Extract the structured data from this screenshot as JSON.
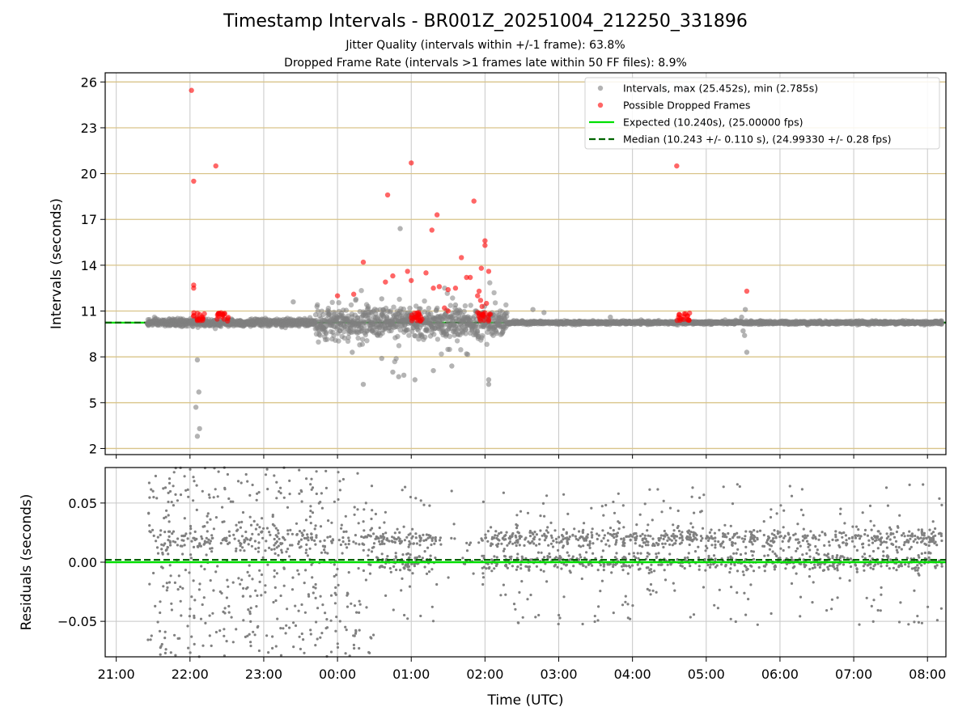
{
  "header": {
    "title": "Timestamp Intervals - BR001Z_20251004_212250_331896",
    "subtitle_1": "Jitter Quality (intervals within +/-1 frame): 63.8%",
    "subtitle_2": "Dropped Frame Rate (intervals >1 frames late within 50 FF files): 8.9%"
  },
  "colors": {
    "intervals": "#808080",
    "dropped": "#ff0000",
    "expected": "#00e000",
    "median": "#006400",
    "hgrid_top": "#d9c48a",
    "grid": "#c8c8c8"
  },
  "chart_data": [
    {
      "type": "scatter",
      "title": "Timestamp Intervals - BR001Z_20251004_212250_331896",
      "xlabel": "",
      "ylabel": "Intervals (seconds)",
      "x_unit": "hours since 21:00 UTC",
      "xlim": [
        -0.15,
        11.25
      ],
      "ylim": [
        1.6,
        26.6
      ],
      "yticks": [
        2,
        5,
        8,
        11,
        14,
        17,
        20,
        23,
        26
      ],
      "ytick_labels": [
        "2",
        "5",
        "8",
        "11",
        "14",
        "17",
        "20",
        "23",
        "26"
      ],
      "grid": "vertical and horizontal",
      "legend_position": "top-right",
      "legend": [
        "Intervals, max (25.452s), min (2.785s)",
        "Possible Dropped Frames",
        "Expected (10.240s), (25.00000 fps)",
        "Median (10.243 +/- 0.110 s), (24.99330 +/- 0.28 fps)"
      ],
      "expected_line": 10.24,
      "median_line": 10.243,
      "series": [
        {
          "name": "Intervals, max (25.452s), min (2.785s)",
          "note": "Dense baseline of ~3600 points near 10.24 s from 21:25 to 08:15 UTC; notable outliers listed",
          "baseline_x_range": [
            0.42,
            11.2
          ],
          "points": [
            [
              1.1,
              7.8
            ],
            [
              1.12,
              5.7
            ],
            [
              1.08,
              4.7
            ],
            [
              1.13,
              3.3
            ],
            [
              1.1,
              2.8
            ],
            [
              3.2,
              8.3
            ],
            [
              3.35,
              6.2
            ],
            [
              3.6,
              7.9
            ],
            [
              3.75,
              7.0
            ],
            [
              3.83,
              6.7
            ],
            [
              3.9,
              6.8
            ],
            [
              4.05,
              6.5
            ],
            [
              4.3,
              7.1
            ],
            [
              4.55,
              7.4
            ],
            [
              4.75,
              8.2
            ],
            [
              5.05,
              6.5
            ],
            [
              5.05,
              6.2
            ],
            [
              3.6,
              11.8
            ],
            [
              3.85,
              16.4
            ],
            [
              2.4,
              11.6
            ],
            [
              4.6,
              11.4
            ],
            [
              5.65,
              11.1
            ],
            [
              5.8,
              10.9
            ],
            [
              6.7,
              10.6
            ],
            [
              7.68,
              10.4
            ],
            [
              8.4,
              10.4
            ],
            [
              8.53,
              11.1
            ],
            [
              8.48,
              10.6
            ],
            [
              8.5,
              9.7
            ],
            [
              8.52,
              9.4
            ],
            [
              8.55,
              8.3
            ]
          ]
        },
        {
          "name": "Possible Dropped Frames",
          "points": [
            [
              1.02,
              25.45
            ],
            [
              1.05,
              19.5
            ],
            [
              1.05,
              12.7
            ],
            [
              1.05,
              12.5
            ],
            [
              1.35,
              20.5
            ],
            [
              3.0,
              12.0
            ],
            [
              3.22,
              12.1
            ],
            [
              3.35,
              14.2
            ],
            [
              3.65,
              12.9
            ],
            [
              3.68,
              18.6
            ],
            [
              3.75,
              13.3
            ],
            [
              3.95,
              13.6
            ],
            [
              4.0,
              20.7
            ],
            [
              4.0,
              13.0
            ],
            [
              4.2,
              13.5
            ],
            [
              4.28,
              16.3
            ],
            [
              4.35,
              17.3
            ],
            [
              4.3,
              12.5
            ],
            [
              4.38,
              12.6
            ],
            [
              4.5,
              12.4
            ],
            [
              4.6,
              12.5
            ],
            [
              4.68,
              14.5
            ],
            [
              4.85,
              18.2
            ],
            [
              4.75,
              13.2
            ],
            [
              4.8,
              13.2
            ],
            [
              4.95,
              13.8
            ],
            [
              5.0,
              15.6
            ],
            [
              5.0,
              15.3
            ],
            [
              5.05,
              13.6
            ],
            [
              5.02,
              11.5
            ],
            [
              4.92,
              12.3
            ],
            [
              4.9,
              12.0
            ],
            [
              4.94,
              11.7
            ],
            [
              4.96,
              11.3
            ],
            [
              4.9,
              10.9
            ],
            [
              4.45,
              11.2
            ],
            [
              4.5,
              11.0
            ],
            [
              4.1,
              10.9
            ],
            [
              4.05,
              10.6
            ],
            [
              8.55,
              12.3
            ],
            [
              7.6,
              20.5
            ]
          ],
          "clusters_near_baseline_x": [
            [
              1.0,
              1.2
            ],
            [
              1.35,
              1.52
            ],
            [
              4.0,
              4.15
            ],
            [
              4.9,
              5.08
            ],
            [
              7.58,
              7.78
            ]
          ]
        }
      ]
    },
    {
      "type": "scatter",
      "xlabel": "Time (UTC)",
      "ylabel": "Residuals (seconds)",
      "x_unit": "hours since 21:00 UTC",
      "xlim": [
        -0.15,
        11.25
      ],
      "ylim": [
        -0.08,
        0.08
      ],
      "yticks": [
        -0.05,
        0.0,
        0.05
      ],
      "ytick_labels": [
        "−0.05",
        "0.00",
        "0.05"
      ],
      "xticks": [
        0,
        1,
        2,
        3,
        4,
        5,
        6,
        7,
        8,
        9,
        10,
        11
      ],
      "xtick_labels": [
        "21:00",
        "22:00",
        "23:00",
        "00:00",
        "01:00",
        "02:00",
        "03:00",
        "04:00",
        "05:00",
        "06:00",
        "07:00",
        "08:00"
      ],
      "grid": "on",
      "expected_line": 0.0,
      "median_line": 0.002,
      "series": [
        {
          "name": "Residuals",
          "note": "~2400 points between 21:25 and 08:15; widely scattered (+/-0.08) before 03:30, tighter bands near 0.00 and +0.02 after 03:30; sparse gap 01:20-02:00"
        }
      ]
    }
  ]
}
